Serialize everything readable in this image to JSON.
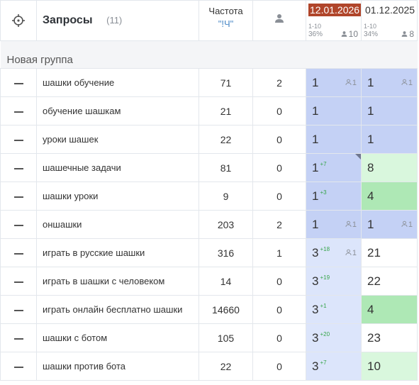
{
  "header": {
    "title": "Запросы",
    "count": "(11)",
    "frequency_label": "Частота",
    "frequency_sub": "\"!Ч\"",
    "dates": [
      {
        "date": "12.01.2026",
        "active": true,
        "range": "1-10",
        "pct": "36%",
        "users": "10"
      },
      {
        "date": "01.12.2025",
        "active": false,
        "range": "1-10",
        "pct": "34%",
        "users": "8"
      }
    ]
  },
  "group": {
    "name": "Новая группа"
  },
  "rows": [
    {
      "query": "шашки обучение",
      "freq": "71",
      "users": "2",
      "p1": {
        "v": "1",
        "delta": "",
        "uc": "1",
        "bg": "blue",
        "corner": false
      },
      "p2": {
        "v": "1",
        "delta": "",
        "uc": "1",
        "bg": "blue"
      }
    },
    {
      "query": "обучение шашкам",
      "freq": "21",
      "users": "0",
      "p1": {
        "v": "1",
        "delta": "",
        "uc": "",
        "bg": "blue",
        "corner": false
      },
      "p2": {
        "v": "1",
        "delta": "",
        "uc": "",
        "bg": "blue"
      }
    },
    {
      "query": "уроки шашек",
      "freq": "22",
      "users": "0",
      "p1": {
        "v": "1",
        "delta": "",
        "uc": "",
        "bg": "blue",
        "corner": false
      },
      "p2": {
        "v": "1",
        "delta": "",
        "uc": "",
        "bg": "blue"
      }
    },
    {
      "query": "шашечные задачи",
      "freq": "81",
      "users": "0",
      "p1": {
        "v": "1",
        "delta": "+7",
        "uc": "",
        "bg": "blue",
        "corner": true
      },
      "p2": {
        "v": "8",
        "delta": "",
        "uc": "",
        "bg": "lightgreen"
      }
    },
    {
      "query": "шашки уроки",
      "freq": "9",
      "users": "0",
      "p1": {
        "v": "1",
        "delta": "+3",
        "uc": "",
        "bg": "blue",
        "corner": false
      },
      "p2": {
        "v": "4",
        "delta": "",
        "uc": "",
        "bg": "green"
      }
    },
    {
      "query": "оншашки",
      "freq": "203",
      "users": "2",
      "p1": {
        "v": "1",
        "delta": "",
        "uc": "1",
        "bg": "blue",
        "corner": false
      },
      "p2": {
        "v": "1",
        "delta": "",
        "uc": "1",
        "bg": "blue"
      }
    },
    {
      "query": "играть в русские шашки",
      "freq": "316",
      "users": "1",
      "p1": {
        "v": "3",
        "delta": "+18",
        "uc": "1",
        "bg": "lightblue",
        "corner": false
      },
      "p2": {
        "v": "21",
        "delta": "",
        "uc": "",
        "bg": "white"
      }
    },
    {
      "query": "играть в шашки с человеком",
      "freq": "14",
      "users": "0",
      "p1": {
        "v": "3",
        "delta": "+19",
        "uc": "",
        "bg": "lightblue",
        "corner": false
      },
      "p2": {
        "v": "22",
        "delta": "",
        "uc": "",
        "bg": "white"
      }
    },
    {
      "query": "играть онлайн бесплатно шашки",
      "freq": "14660",
      "users": "0",
      "p1": {
        "v": "3",
        "delta": "+1",
        "uc": "",
        "bg": "lightblue",
        "corner": false
      },
      "p2": {
        "v": "4",
        "delta": "",
        "uc": "",
        "bg": "green"
      }
    },
    {
      "query": "шашки с ботом",
      "freq": "105",
      "users": "0",
      "p1": {
        "v": "3",
        "delta": "+20",
        "uc": "",
        "bg": "lightblue",
        "corner": false
      },
      "p2": {
        "v": "23",
        "delta": "",
        "uc": "",
        "bg": "white"
      }
    },
    {
      "query": "шашки против бота",
      "freq": "22",
      "users": "0",
      "p1": {
        "v": "3",
        "delta": "+7",
        "uc": "",
        "bg": "lightblue",
        "corner": false
      },
      "p2": {
        "v": "10",
        "delta": "",
        "uc": "",
        "bg": "lightgreen"
      }
    }
  ]
}
